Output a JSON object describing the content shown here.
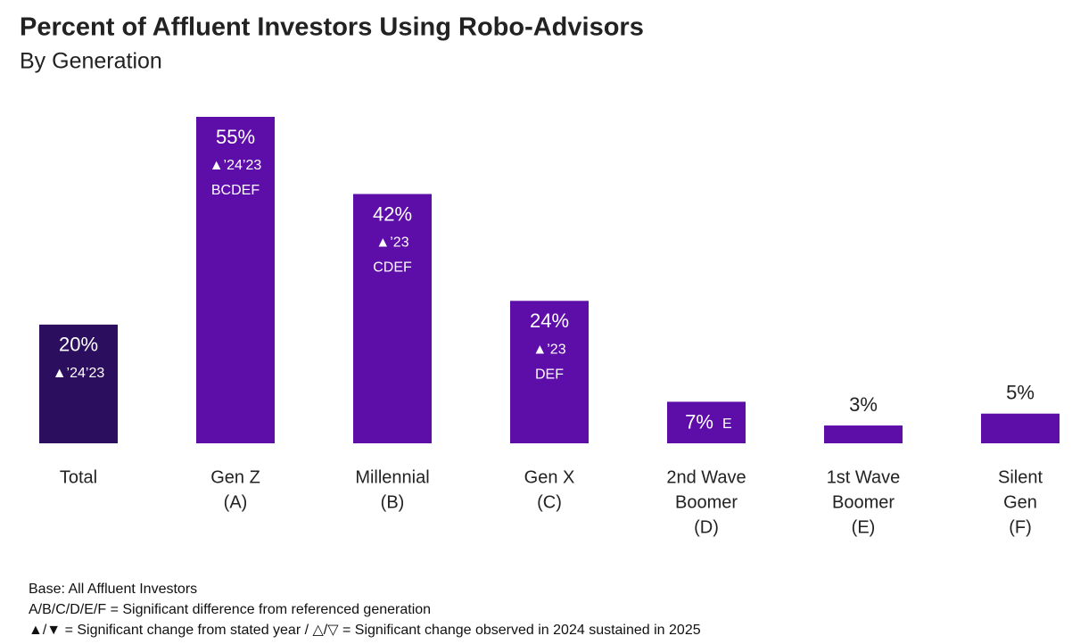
{
  "chart_data": {
    "type": "bar",
    "title": "Percent of Affluent Investors Using Robo-Advisors",
    "subtitle": "By Generation",
    "categories": [
      [
        "Total"
      ],
      [
        "Gen Z",
        "(A)"
      ],
      [
        "Millennial",
        "(B)"
      ],
      [
        "Gen X",
        "(C)"
      ],
      [
        "2nd Wave",
        "Boomer",
        "(D)"
      ],
      [
        "1st Wave",
        "Boomer",
        "(E)"
      ],
      [
        "Silent",
        "Gen",
        "(F)"
      ]
    ],
    "values": [
      20,
      55,
      42,
      24,
      7,
      3,
      5
    ],
    "value_labels": [
      "20%",
      "55%",
      "42%",
      "24%",
      "7%",
      "3%",
      "5%"
    ],
    "annotations": [
      [
        "▲’24’23"
      ],
      [
        "▲’24’23",
        "BCDEF"
      ],
      [
        "▲’23",
        "CDEF"
      ],
      [
        "▲’23",
        "DEF"
      ],
      [
        "E"
      ],
      [],
      []
    ],
    "colors": [
      "#2b0f5e",
      "#5e0ea8",
      "#5e0ea8",
      "#5e0ea8",
      "#5e0ea8",
      "#5e0ea8",
      "#5e0ea8"
    ],
    "notes": [
      "Base: All Affluent Investors",
      "A/B/C/D/E/F = Significant difference from referenced generation",
      "▲/▼ = Significant change from stated year / △/▽ = Significant change observed in 2024 sustained in 2025"
    ]
  }
}
